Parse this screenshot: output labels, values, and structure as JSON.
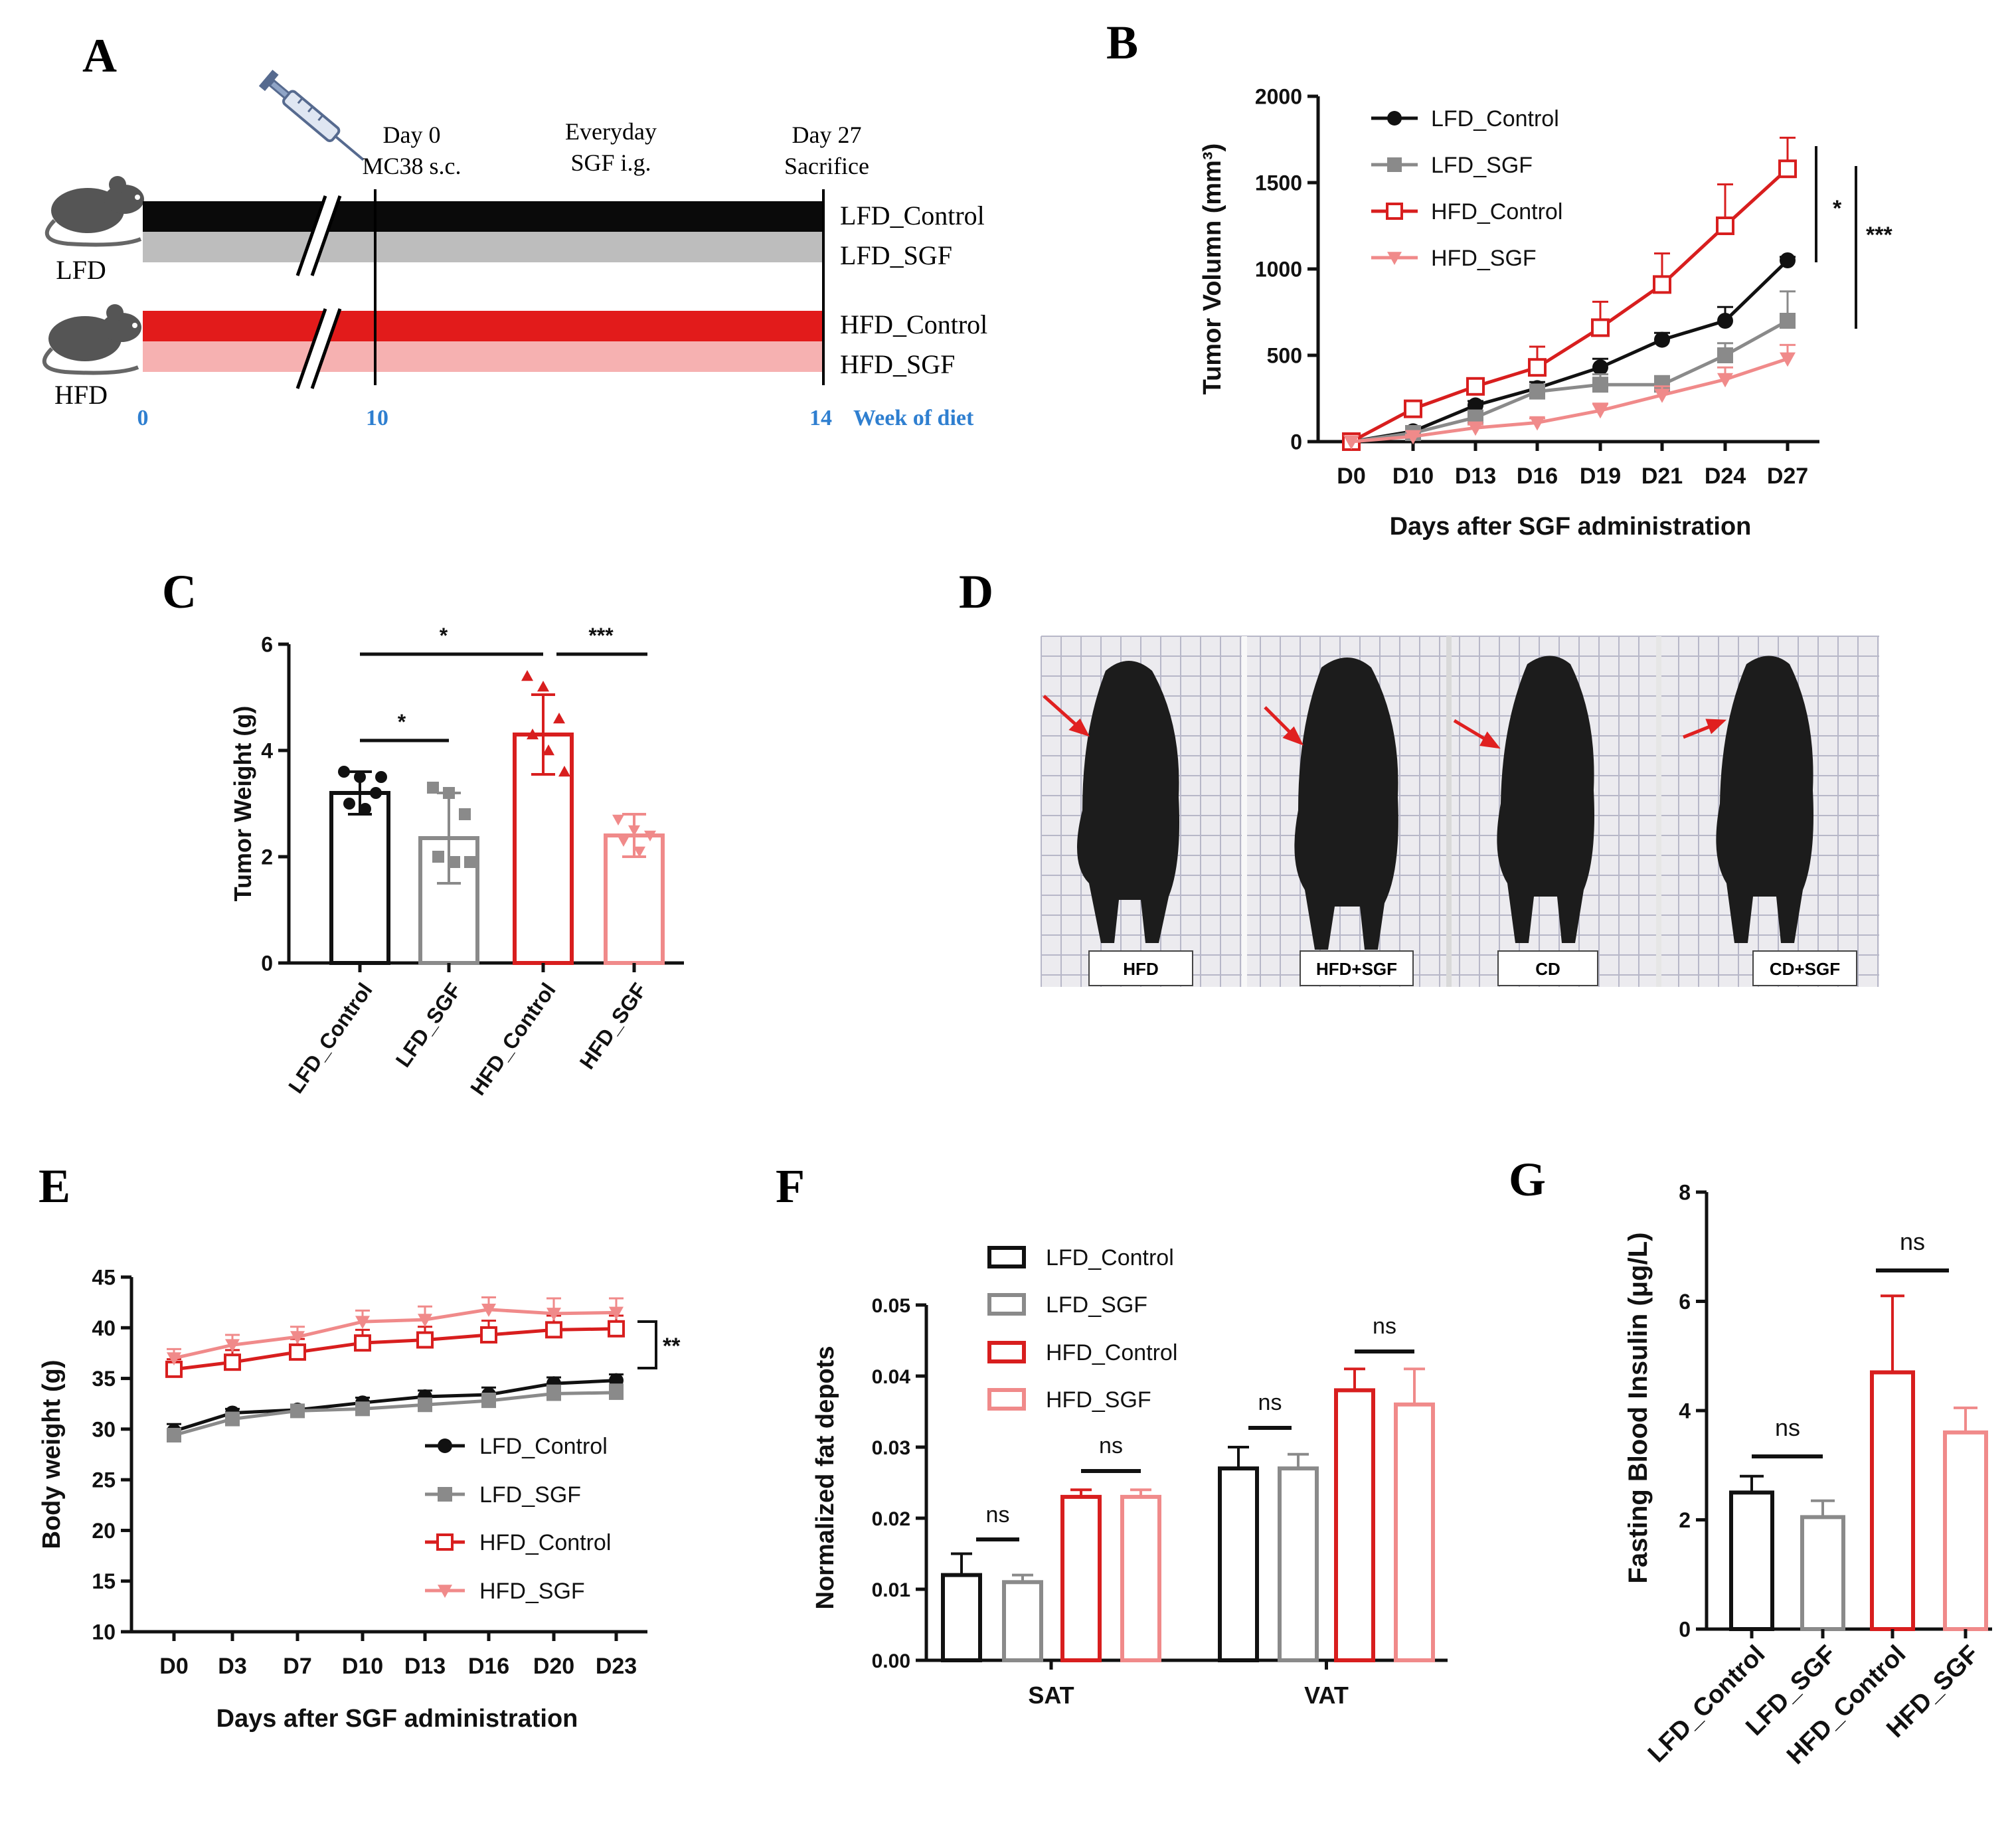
{
  "colors": {
    "black": "#111111",
    "gray": "#8a8a8a",
    "red": "#d81e1e",
    "pink": "#f08a8a",
    "blue": "#2f7fd0",
    "pinkbar": "#f5b6b6",
    "graybar": "#b9b9b9"
  },
  "panels": {
    "a": {
      "letter": "A",
      "day0": "Day 0",
      "mc38": "MC38 s.c.",
      "everyday": "Everyday",
      "sgf_ig": "SGF i.g.",
      "day27": "Day 27",
      "sacrifice": "Sacrifice",
      "lfd": "LFD",
      "hfd": "HFD",
      "bars": [
        "LFD_Control",
        "LFD_SGF",
        "HFD_Control",
        "HFD_SGF"
      ],
      "ticks": [
        "0",
        "10",
        "14"
      ],
      "week_label": "Week of diet",
      "mouse_icon": "mouse-icon",
      "syringe_icon": "syringe-icon"
    },
    "b": {
      "letter": "B"
    },
    "c": {
      "letter": "C"
    },
    "d": {
      "letter": "D",
      "labels": [
        "HFD",
        "HFD+SGF",
        "CD",
        "CD+SGF"
      ]
    },
    "e": {
      "letter": "E"
    },
    "f": {
      "letter": "F"
    },
    "g": {
      "letter": "G"
    }
  },
  "chart_data": [
    {
      "id": "B",
      "type": "line",
      "title": "",
      "xlabel": "Days after SGF administration",
      "ylabel": "Tumor Volumn (mm³)",
      "categories": [
        "D0",
        "D10",
        "D13",
        "D16",
        "D19",
        "D21",
        "D24",
        "D27"
      ],
      "ylim": [
        0,
        2000
      ],
      "yticks": [
        "0",
        "500",
        "1000",
        "1500",
        "2000"
      ],
      "legend": "top-left",
      "series": [
        {
          "name": "LFD_Control",
          "color": "#111111",
          "marker": "circle",
          "values": [
            0,
            60,
            210,
            310,
            430,
            590,
            700,
            1050
          ],
          "errors": [
            0,
            15,
            25,
            35,
            50,
            40,
            80,
            20
          ]
        },
        {
          "name": "LFD_SGF",
          "color": "#8a8a8a",
          "marker": "square",
          "values": [
            0,
            50,
            140,
            290,
            330,
            330,
            500,
            700
          ],
          "errors": [
            0,
            15,
            30,
            40,
            60,
            50,
            70,
            170
          ]
        },
        {
          "name": "HFD_Control",
          "color": "#d81e1e",
          "marker": "open-square",
          "values": [
            0,
            190,
            320,
            430,
            660,
            910,
            1250,
            1580
          ],
          "errors": [
            0,
            30,
            40,
            120,
            150,
            180,
            240,
            180
          ]
        },
        {
          "name": "HFD_SGF",
          "color": "#f08a8a",
          "marker": "triangle-down",
          "values": [
            0,
            30,
            80,
            110,
            180,
            270,
            360,
            480
          ],
          "errors": [
            0,
            10,
            20,
            25,
            40,
            50,
            70,
            80
          ]
        }
      ],
      "annotations": [
        "*",
        "***"
      ]
    },
    {
      "id": "C",
      "type": "bar",
      "title": "",
      "xlabel": "",
      "ylabel": "Tumor Weight (g)",
      "categories": [
        "LFD_Control",
        "LFD_SGF",
        "HFD_Control",
        "HFD_SGF"
      ],
      "values": [
        3.2,
        2.35,
        4.3,
        2.4
      ],
      "errors": [
        0.4,
        0.85,
        0.75,
        0.4
      ],
      "colors": [
        "#111111",
        "#8a8a8a",
        "#d81e1e",
        "#f08a8a"
      ],
      "markers": [
        "circle",
        "square",
        "triangle",
        "triangle-down"
      ],
      "points": [
        [
          3.6,
          3.5,
          3.2,
          3.0,
          2.9,
          3.5
        ],
        [
          3.3,
          3.2,
          2.8,
          2.0,
          1.9,
          1.9
        ],
        [
          5.4,
          5.2,
          4.6,
          4.3,
          4.0,
          3.6
        ],
        [
          2.7,
          2.5,
          2.4,
          2.3,
          2.1
        ]
      ],
      "ylim": [
        0,
        6
      ],
      "yticks": [
        "0",
        "2",
        "4",
        "6"
      ],
      "annotations": [
        "*",
        "*",
        "***"
      ]
    },
    {
      "id": "E",
      "type": "line",
      "title": "",
      "xlabel": "Days after SGF administration",
      "ylabel": "Body weight (g)",
      "categories": [
        "D0",
        "D3",
        "D7",
        "D10",
        "D13",
        "D16",
        "D20",
        "D23"
      ],
      "ylim": [
        10,
        45
      ],
      "yticks": [
        "10",
        "15",
        "20",
        "25",
        "30",
        "35",
        "40",
        "45"
      ],
      "legend": "bottom-right",
      "series": [
        {
          "name": "LFD_Control",
          "color": "#111111",
          "marker": "circle",
          "values": [
            29.8,
            31.6,
            31.9,
            32.6,
            33.2,
            33.4,
            34.5,
            34.8
          ],
          "errors": [
            0.7,
            0.4,
            0.5,
            0.5,
            0.6,
            0.7,
            0.6,
            0.6
          ]
        },
        {
          "name": "LFD_SGF",
          "color": "#8a8a8a",
          "marker": "square",
          "values": [
            29.4,
            31.0,
            31.8,
            32.0,
            32.4,
            32.8,
            33.5,
            33.6
          ],
          "errors": [
            0.6,
            0.5,
            0.5,
            0.6,
            0.6,
            0.7,
            0.8,
            0.8
          ]
        },
        {
          "name": "HFD_Control",
          "color": "#d81e1e",
          "marker": "open-square",
          "values": [
            35.9,
            36.6,
            37.6,
            38.5,
            38.8,
            39.3,
            39.8,
            39.9
          ],
          "errors": [
            1.0,
            1.2,
            1.3,
            1.3,
            1.3,
            1.4,
            1.4,
            1.3
          ]
        },
        {
          "name": "HFD_SGF",
          "color": "#f08a8a",
          "marker": "triangle-down",
          "values": [
            37.0,
            38.3,
            39.1,
            40.6,
            40.8,
            41.8,
            41.4,
            41.5
          ],
          "errors": [
            0.9,
            1.0,
            1.0,
            1.1,
            1.3,
            1.2,
            1.5,
            1.4
          ]
        }
      ],
      "annotations": [
        "**"
      ]
    },
    {
      "id": "F",
      "type": "bar",
      "title": "",
      "xlabel": "",
      "ylabel": "Normalized fat depots",
      "groups": [
        "SAT",
        "VAT"
      ],
      "ylim": [
        0,
        0.05
      ],
      "yticks": [
        "0.00",
        "0.01",
        "0.02",
        "0.03",
        "0.04",
        "0.05"
      ],
      "legend": "top-left",
      "series": [
        {
          "name": "LFD_Control",
          "color": "#111111",
          "values": [
            0.012,
            0.027
          ],
          "errors": [
            0.003,
            0.003
          ]
        },
        {
          "name": "LFD_SGF",
          "color": "#8a8a8a",
          "values": [
            0.011,
            0.027
          ],
          "errors": [
            0.001,
            0.002
          ]
        },
        {
          "name": "HFD_Control",
          "color": "#d81e1e",
          "values": [
            0.023,
            0.038
          ],
          "errors": [
            0.001,
            0.003
          ]
        },
        {
          "name": "HFD_SGF",
          "color": "#f08a8a",
          "values": [
            0.023,
            0.036
          ],
          "errors": [
            0.001,
            0.005
          ]
        }
      ],
      "annotations": [
        "ns",
        "ns",
        "ns",
        "ns"
      ]
    },
    {
      "id": "G",
      "type": "bar",
      "title": "",
      "xlabel": "",
      "ylabel": "Fasting Blood Insulin (μg/L)",
      "categories": [
        "LFD_Control",
        "LFD_SGF",
        "HFD_Control",
        "HFD_SGF"
      ],
      "values": [
        2.5,
        2.05,
        4.7,
        3.6
      ],
      "errors": [
        0.3,
        0.3,
        1.4,
        0.45
      ],
      "colors": [
        "#111111",
        "#8a8a8a",
        "#d81e1e",
        "#f08a8a"
      ],
      "ylim": [
        0,
        8
      ],
      "yticks": [
        "0",
        "2",
        "4",
        "6",
        "8"
      ],
      "annotations": [
        "ns",
        "ns"
      ]
    }
  ]
}
